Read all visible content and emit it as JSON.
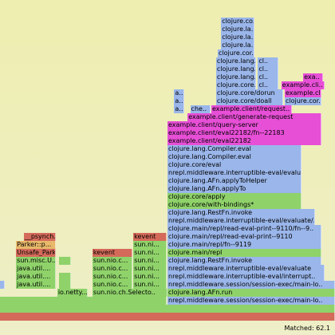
{
  "chart_data": {
    "type": "flamegraph",
    "title": "",
    "status": {
      "matched_label": "Matched: 62.1"
    },
    "colors": {
      "green": "#8fd26a",
      "blue": "#9ab6ea",
      "magenta": "#e64fd6",
      "red": "#d46a5a",
      "orange": "#e8b86a"
    },
    "frames": [
      {
        "depth": 0,
        "start": 0.0,
        "width": 100.0,
        "label": "",
        "color": "red"
      },
      {
        "depth": 1,
        "start": 0.0,
        "width": 100.0,
        "label": "",
        "color": "green"
      },
      {
        "depth": 2,
        "start": 0.0,
        "width": 49.8,
        "label": "",
        "color": "green"
      },
      {
        "depth": 2,
        "start": 50.0,
        "width": 50.0,
        "label": "nrepl.middleware.session/session-exec/main-lo..",
        "color": "blue"
      },
      {
        "depth": 3,
        "start": 17.1,
        "width": 9.0,
        "label": "io.netty....",
        "color": "green"
      },
      {
        "depth": 3,
        "start": 27.6,
        "width": 22.3,
        "label": "sun.nio.ch.Selecto..",
        "color": "green"
      },
      {
        "depth": 3,
        "start": 50.0,
        "width": 50.0,
        "label": "clojure.lang.AFn.run",
        "color": "green"
      },
      {
        "depth": 4,
        "start": 0.0,
        "width": 1.4,
        "label": "",
        "color": "blue"
      },
      {
        "depth": 4,
        "start": 4.8,
        "width": 11.9,
        "label": "java.util....",
        "color": "green"
      },
      {
        "depth": 4,
        "start": 17.6,
        "width": 3.5,
        "label": "",
        "color": "green"
      },
      {
        "depth": 4,
        "start": 27.6,
        "width": 11.9,
        "label": "sun.nio.c...",
        "color": "green"
      },
      {
        "depth": 4,
        "start": 39.8,
        "width": 10.0,
        "label": "sun.ni...",
        "color": "green"
      },
      {
        "depth": 4,
        "start": 50.0,
        "width": 50.0,
        "label": "nrepl.middleware.session/session-exec/main-lo..",
        "color": "blue"
      },
      {
        "depth": 5,
        "start": 4.8,
        "width": 11.9,
        "label": "java.util....",
        "color": "green"
      },
      {
        "depth": 5,
        "start": 17.6,
        "width": 3.5,
        "label": "",
        "color": "green"
      },
      {
        "depth": 5,
        "start": 27.6,
        "width": 11.9,
        "label": "sun.nio.c...",
        "color": "green"
      },
      {
        "depth": 5,
        "start": 39.8,
        "width": 10.0,
        "label": "sun.ni...",
        "color": "green"
      },
      {
        "depth": 5,
        "start": 50.0,
        "width": 47.0,
        "label": "nrepl.middleware.interruptible-eval/interrupt..",
        "color": "blue"
      },
      {
        "depth": 6,
        "start": 4.8,
        "width": 11.9,
        "label": "java.util....",
        "color": "green"
      },
      {
        "depth": 6,
        "start": 27.6,
        "width": 11.9,
        "label": "sun.nio.c...",
        "color": "green"
      },
      {
        "depth": 6,
        "start": 39.8,
        "width": 10.0,
        "label": "sun.ni...",
        "color": "green"
      },
      {
        "depth": 6,
        "start": 50.0,
        "width": 47.0,
        "label": "nrepl.middleware.interruptible-eval/evaluate",
        "color": "blue"
      },
      {
        "depth": 7,
        "start": 4.8,
        "width": 11.9,
        "label": "sun.misc.U...",
        "color": "green"
      },
      {
        "depth": 7,
        "start": 17.6,
        "width": 3.5,
        "label": "",
        "color": "green"
      },
      {
        "depth": 7,
        "start": 27.6,
        "width": 11.9,
        "label": "sun.nio.c...",
        "color": "green"
      },
      {
        "depth": 7,
        "start": 39.8,
        "width": 10.0,
        "label": "sun.ni...",
        "color": "green"
      },
      {
        "depth": 7,
        "start": 50.0,
        "width": 46.0,
        "label": "clojure.lang.RestFn.invoke",
        "color": "blue"
      },
      {
        "depth": 8,
        "start": 4.8,
        "width": 11.9,
        "label": "Unsafe_Park",
        "color": "red"
      },
      {
        "depth": 8,
        "start": 27.6,
        "width": 11.9,
        "label": "kevent",
        "color": "red"
      },
      {
        "depth": 8,
        "start": 39.8,
        "width": 10.0,
        "label": "sun.ni...",
        "color": "green"
      },
      {
        "depth": 8,
        "start": 50.0,
        "width": 46.0,
        "label": "clojure.main/repl",
        "color": "green"
      },
      {
        "depth": 9,
        "start": 4.8,
        "width": 11.9,
        "label": "Parker::p...",
        "color": "orange"
      },
      {
        "depth": 9,
        "start": 39.8,
        "width": 10.0,
        "label": "sun.ni...",
        "color": "green"
      },
      {
        "depth": 9,
        "start": 50.0,
        "width": 46.0,
        "label": "clojure.main/repl/fn--9119",
        "color": "blue"
      },
      {
        "depth": 10,
        "start": 7.1,
        "width": 9.5,
        "label": "__psynch...",
        "color": "red"
      },
      {
        "depth": 10,
        "start": 39.8,
        "width": 10.0,
        "label": "kevent",
        "color": "red"
      },
      {
        "depth": 10,
        "start": 50.0,
        "width": 46.0,
        "label": "clojure.main/repl/read-eval-print--9110",
        "color": "blue"
      },
      {
        "depth": 11,
        "start": 50.0,
        "width": 46.0,
        "label": "clojure.main/repl/read-eval-print--9110/fn--9..",
        "color": "blue"
      },
      {
        "depth": 12,
        "start": 50.0,
        "width": 44.0,
        "label": "nrepl.middleware.interruptible-eval/evaluate/..",
        "color": "blue"
      },
      {
        "depth": 13,
        "start": 50.0,
        "width": 44.0,
        "label": "clojure.lang.RestFn.invoke",
        "color": "blue"
      },
      {
        "depth": 14,
        "start": 50.0,
        "width": 40.0,
        "label": "clojure.core/with-bindings*",
        "color": "green"
      },
      {
        "depth": 15,
        "start": 50.0,
        "width": 40.0,
        "label": "clojure.core/apply",
        "color": "green"
      },
      {
        "depth": 16,
        "start": 50.0,
        "width": 40.0,
        "label": "clojure.lang.AFn.applyTo",
        "color": "blue"
      },
      {
        "depth": 17,
        "start": 50.0,
        "width": 40.0,
        "label": "clojure.lang.AFn.applyToHelper",
        "color": "blue"
      },
      {
        "depth": 18,
        "start": 50.0,
        "width": 40.0,
        "label": "nrepl.middleware.interruptible-eval/evaluate/..",
        "color": "blue"
      },
      {
        "depth": 19,
        "start": 50.0,
        "width": 40.0,
        "label": "clojure.core/eval",
        "color": "blue"
      },
      {
        "depth": 20,
        "start": 50.0,
        "width": 40.0,
        "label": "clojure.lang.Compiler.eval",
        "color": "blue"
      },
      {
        "depth": 21,
        "start": 50.0,
        "width": 40.0,
        "label": "clojure.lang.Compiler.eval",
        "color": "blue"
      },
      {
        "depth": 22,
        "start": 50.0,
        "width": 46.0,
        "label": "example.client/eval22182",
        "color": "magenta"
      },
      {
        "depth": 23,
        "start": 50.0,
        "width": 46.0,
        "label": "example.client/eval22182/fn--22183",
        "color": "magenta"
      },
      {
        "depth": 24,
        "start": 50.0,
        "width": 46.0,
        "label": "example.client/query-server",
        "color": "magenta"
      },
      {
        "depth": 25,
        "start": 56.0,
        "width": 40.0,
        "label": "example.client/generate-request",
        "color": "magenta"
      },
      {
        "depth": 26,
        "start": 52.0,
        "width": 3.0,
        "label": "a..",
        "color": "blue"
      },
      {
        "depth": 26,
        "start": 56.8,
        "width": 6.0,
        "label": "che..",
        "color": "blue"
      },
      {
        "depth": 26,
        "start": 63.1,
        "width": 24.0,
        "label": "example.client/request..",
        "color": "magenta"
      },
      {
        "depth": 27,
        "start": 52.0,
        "width": 3.0,
        "label": "a..",
        "color": "blue"
      },
      {
        "depth": 27,
        "start": 64.5,
        "width": 20.0,
        "label": "clojure.core/doall",
        "color": "blue"
      },
      {
        "depth": 27,
        "start": 85.0,
        "width": 11.0,
        "label": "clojure.cor..",
        "color": "blue"
      },
      {
        "depth": 28,
        "start": 52.0,
        "width": 3.0,
        "label": "a..",
        "color": "blue"
      },
      {
        "depth": 28,
        "start": 64.5,
        "width": 20.0,
        "label": "clojure.core/dorun",
        "color": "blue"
      },
      {
        "depth": 28,
        "start": 85.0,
        "width": 11.0,
        "label": "example.cli..",
        "color": "magenta"
      },
      {
        "depth": 29,
        "start": 64.5,
        "width": 12.0,
        "label": "clojure.core..",
        "color": "blue"
      },
      {
        "depth": 29,
        "start": 77.0,
        "width": 6.0,
        "label": "cl..",
        "color": "blue"
      },
      {
        "depth": 29,
        "start": 84.0,
        "width": 13.0,
        "label": "example.cli..",
        "color": "magenta"
      },
      {
        "depth": 30,
        "start": 64.5,
        "width": 12.0,
        "label": "clojure.lang..",
        "color": "blue"
      },
      {
        "depth": 30,
        "start": 77.0,
        "width": 6.0,
        "label": "cl..",
        "color": "blue"
      },
      {
        "depth": 30,
        "start": 90.5,
        "width": 6.0,
        "label": "exa..",
        "color": "magenta"
      },
      {
        "depth": 31,
        "start": 64.5,
        "width": 12.0,
        "label": "clojure.lang..",
        "color": "blue"
      },
      {
        "depth": 31,
        "start": 77.0,
        "width": 6.0,
        "label": "cl..",
        "color": "blue"
      },
      {
        "depth": 32,
        "start": 64.5,
        "width": 12.0,
        "label": "clojure.lang..",
        "color": "blue"
      },
      {
        "depth": 32,
        "start": 77.0,
        "width": 6.0,
        "label": "cl..",
        "color": "blue"
      },
      {
        "depth": 33,
        "start": 65.0,
        "width": 11.0,
        "label": "clojure.cor..",
        "color": "blue"
      },
      {
        "depth": 34,
        "start": 66.0,
        "width": 10.0,
        "label": "clojure.la..",
        "color": "blue"
      },
      {
        "depth": 35,
        "start": 66.0,
        "width": 10.0,
        "label": "clojure.la..",
        "color": "blue"
      },
      {
        "depth": 36,
        "start": 66.0,
        "width": 10.0,
        "label": "clojure.la..",
        "color": "blue"
      },
      {
        "depth": 37,
        "start": 66.0,
        "width": 10.0,
        "label": "clojure.co..",
        "color": "blue"
      }
    ]
  }
}
